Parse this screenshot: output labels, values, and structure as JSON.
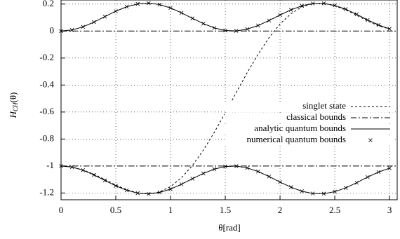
{
  "chart_data": {
    "type": "line",
    "xlabel": "θ[rad]",
    "ylabel": {
      "base": "H",
      "sub": "CH",
      "rest": "(θ)"
    },
    "xlim": [
      0,
      3.07
    ],
    "ylim": [
      -1.25,
      0.23
    ],
    "xticks": [
      0,
      0.5,
      1,
      1.5,
      2,
      2.5,
      3
    ],
    "yticks": [
      0.2,
      0,
      -0.2,
      -0.4,
      -0.6,
      -0.8,
      -1,
      -1.2
    ],
    "grid": true,
    "legend": "center right",
    "x": [
      0,
      0.1,
      0.2,
      0.3,
      0.4,
      0.5,
      0.6,
      0.7,
      0.8,
      0.9,
      1.0,
      1.1,
      1.2,
      1.3,
      1.4,
      1.5,
      1.6,
      1.7,
      1.8,
      1.9,
      2.0,
      2.1,
      2.2,
      2.3,
      2.4,
      2.5,
      2.6,
      2.7,
      2.8,
      2.9,
      3.0
    ],
    "series": [
      {
        "name": "singlet state",
        "style": "dash",
        "color": "#000000",
        "segments": [
          [
            -1,
            -1.0074,
            -1.029,
            -1.061,
            -1.1,
            -1.141,
            -1.176,
            -1.2,
            -1.207,
            -1.192,
            -1.153,
            -1.087,
            -0.996,
            -0.882,
            -0.75,
            -0.606,
            -0.456,
            -0.309,
            -0.171,
            -0.049,
            0.052,
            0.129,
            0.179,
            0.204,
            0.205,
            0.187,
            0.156,
            0.117,
            0.074,
            0.038,
            0.015
          ]
        ]
      },
      {
        "name": "classical bounds",
        "style": "dashdot",
        "color": "#000000",
        "x": [
          0,
          3.07
        ],
        "segments": [
          [
            0,
            0
          ],
          [
            -1,
            -1
          ]
        ]
      },
      {
        "name": "analytic quantum bounds",
        "style": "solid",
        "color": "#000000",
        "segments": [
          [
            0,
            0.008,
            0.031,
            0.066,
            0.107,
            0.147,
            0.18,
            0.201,
            0.207,
            0.196,
            0.171,
            0.135,
            0.094,
            0.055,
            0.023,
            0.004,
            0.001,
            0.014,
            0.041,
            0.078,
            0.119,
            0.157,
            0.187,
            0.204,
            0.205,
            0.19,
            0.162,
            0.124,
            0.082,
            0.045,
            0.016
          ],
          [
            -1,
            -1.008,
            -1.031,
            -1.066,
            -1.107,
            -1.147,
            -1.18,
            -1.201,
            -1.207,
            -1.196,
            -1.171,
            -1.135,
            -1.094,
            -1.055,
            -1.023,
            -1.004,
            -1.001,
            -1.014,
            -1.041,
            -1.078,
            -1.119,
            -1.157,
            -1.187,
            -1.204,
            -1.205,
            -1.19,
            -1.162,
            -1.124,
            -1.082,
            -1.045,
            -1.016
          ]
        ]
      },
      {
        "name": "numerical quantum bounds",
        "style": "cross",
        "color": "#000000",
        "segments": [
          [
            0,
            0.008,
            0.031,
            0.066,
            0.107,
            0.147,
            0.18,
            0.201,
            0.207,
            0.196,
            0.171,
            0.135,
            0.094,
            0.055,
            0.023,
            0.004,
            0.001,
            0.014,
            0.041,
            0.078,
            0.119,
            0.157,
            0.187,
            0.204,
            0.205,
            0.19,
            0.162,
            0.124,
            0.082,
            0.045,
            0.016
          ],
          [
            -1,
            -1.008,
            -1.031,
            -1.066,
            -1.107,
            -1.147,
            -1.18,
            -1.201,
            -1.207,
            -1.196,
            -1.171,
            -1.135,
            -1.094,
            -1.055,
            -1.023,
            -1.004,
            -1.001,
            -1.014,
            -1.041,
            -1.078,
            -1.119,
            -1.157,
            -1.187,
            -1.204,
            -1.205,
            -1.19,
            -1.162,
            -1.124,
            -1.082,
            -1.045,
            -1.016
          ]
        ]
      }
    ]
  }
}
